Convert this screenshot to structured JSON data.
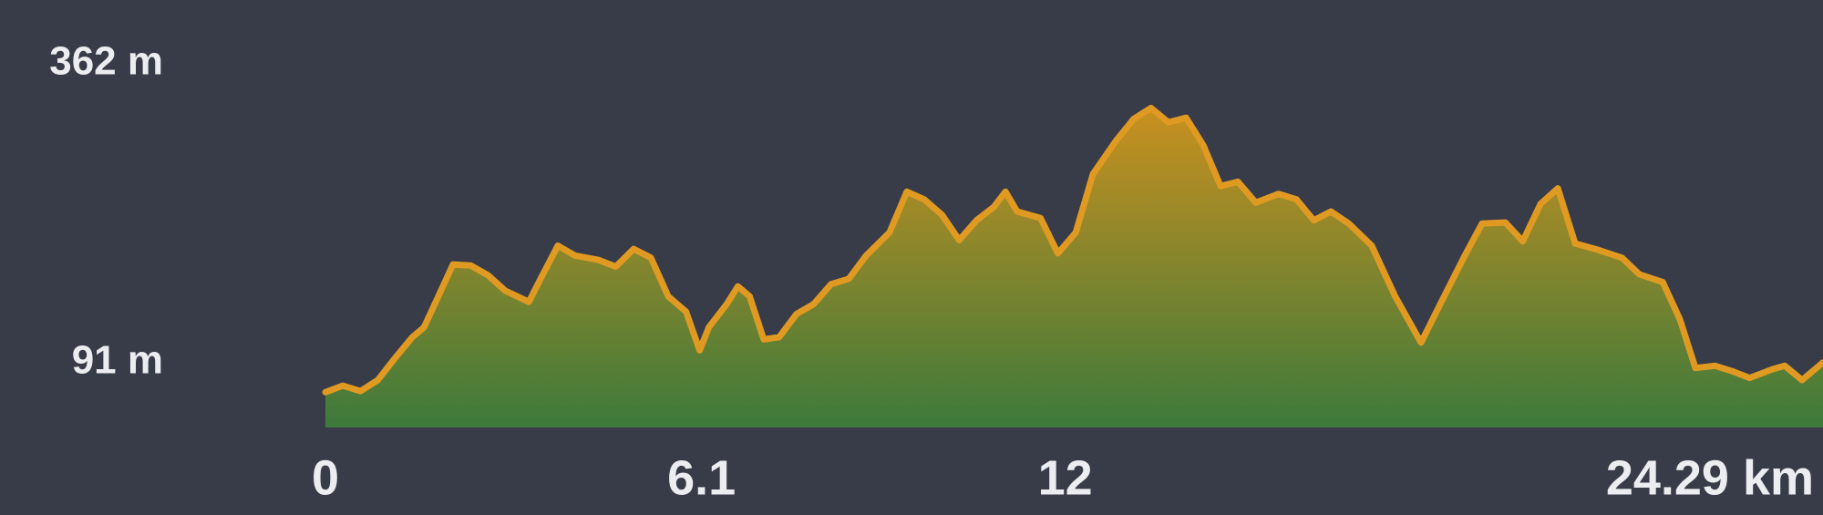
{
  "chart_data": {
    "type": "area",
    "x": [
      0,
      0.28,
      0.57,
      0.85,
      1.13,
      1.41,
      1.6,
      1.79,
      2.07,
      2.36,
      2.64,
      2.92,
      3.3,
      3.49,
      3.77,
      4.05,
      4.43,
      4.71,
      5.0,
      5.28,
      5.56,
      5.85,
      6.07,
      6.22,
      6.51,
      6.69,
      6.88,
      7.11,
      7.36,
      7.64,
      7.92,
      8.2,
      8.49,
      8.77,
      9.15,
      9.43,
      9.71,
      10.0,
      10.28,
      10.56,
      10.84,
      11.03,
      11.22,
      11.6,
      11.88,
      12.17,
      12.45,
      12.82,
      13.11,
      13.39,
      13.67,
      13.96,
      14.24,
      14.52,
      14.8,
      15.09,
      15.46,
      15.75,
      16.03,
      16.31,
      16.6,
      16.97,
      17.35,
      17.77,
      18.1,
      18.48,
      18.76,
      19.14,
      19.42,
      19.71,
      19.99,
      20.27,
      20.65,
      21.03,
      21.31,
      21.69,
      21.97,
      22.22,
      22.54,
      22.82,
      23.1,
      23.48,
      23.67,
      23.95,
      24.29
    ],
    "series": [
      {
        "values": [
          64,
          70,
          65,
          75,
          95,
          114,
          123,
          146,
          180,
          179,
          170,
          156,
          146,
          167,
          197,
          188,
          184,
          178,
          194,
          186,
          151,
          137,
          102,
          123,
          144,
          160,
          151,
          112,
          114,
          135,
          144,
          162,
          167,
          188,
          209,
          246,
          239,
          225,
          202,
          220,
          232,
          246,
          228,
          222,
          190,
          209,
          262,
          292,
          312,
          322,
          309,
          313,
          288,
          251,
          255,
          236,
          244,
          239,
          220,
          228,
          217,
          197,
          151,
          109,
          146,
          188,
          217,
          218,
          201,
          235,
          249,
          199,
          193,
          186,
          171,
          164,
          130,
          86,
          88,
          83,
          77,
          85,
          88,
          75,
          91
        ]
      }
    ],
    "line_color": "#e09a22",
    "fill_gradient": [
      "#c8901f",
      "#3d7a3b"
    ],
    "xlim": [
      0,
      24.29
    ],
    "ylim": [
      32,
      362
    ],
    "yticks": [
      {
        "value": 91,
        "label": "91 m"
      },
      {
        "value": 362,
        "label": "362 m"
      }
    ],
    "xticks": [
      0,
      6.1,
      12,
      {
        "value": 24.29,
        "label": "24.29 km"
      }
    ]
  }
}
